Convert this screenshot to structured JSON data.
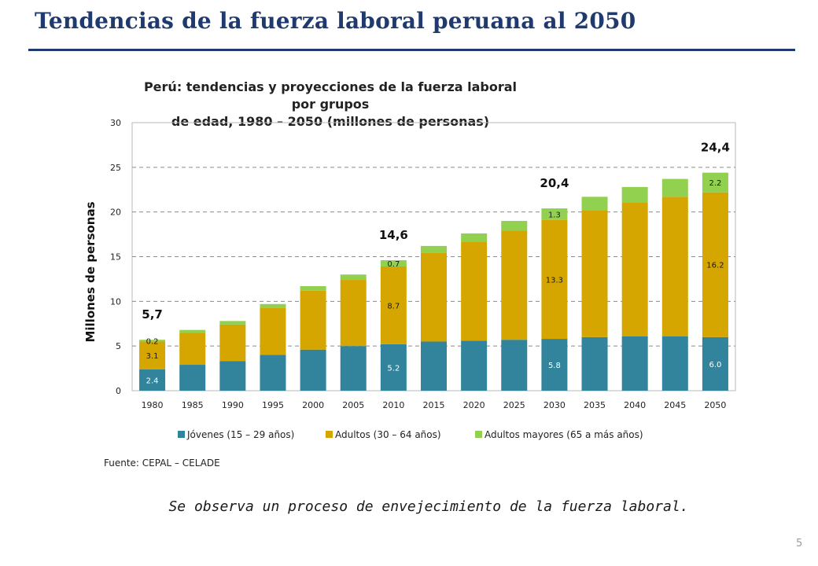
{
  "slide": {
    "title": "Tendencias  de la fuerza laboral peruana al 2050",
    "source": "Fuente: CEPAL – CELADE",
    "note": "Se observa un proceso de envejecimiento de la fuerza laboral.",
    "page_number": "5"
  },
  "colors": {
    "title": "#1f3a6e",
    "jovenes": "#31849b",
    "adultos": "#d6a600",
    "mayores": "#92d050"
  },
  "chart_data": {
    "type": "bar",
    "stacked": true,
    "title": [
      "Perú: tendencias y proyecciones de la fuerza laboral por grupos",
      "de edad, 1980 – 2050 (millones de personas)"
    ],
    "ylabel": "Millones de personas",
    "xlabel": "",
    "ylim": [
      0,
      30
    ],
    "yticks": [
      0,
      5,
      10,
      15,
      20,
      25,
      30
    ],
    "grid": true,
    "legend_position": "bottom",
    "categories": [
      "1980",
      "1985",
      "1990",
      "1995",
      "2000",
      "2005",
      "2010",
      "2015",
      "2020",
      "2025",
      "2030",
      "2035",
      "2040",
      "2045",
      "2050"
    ],
    "series": [
      {
        "name": "Jóvenes (15 – 29 años)",
        "color": "#31849b",
        "values": [
          2.4,
          2.9,
          3.3,
          4.0,
          4.6,
          5.0,
          5.2,
          5.5,
          5.6,
          5.7,
          5.8,
          6.0,
          6.1,
          6.1,
          6.0
        ],
        "data_labels": {
          "0": "2.4",
          "6": "5.2",
          "10": "5.8",
          "14": "6.0"
        }
      },
      {
        "name": "Adultos (30 – 64 años)",
        "color": "#d6a600",
        "values": [
          3.1,
          3.6,
          4.1,
          5.3,
          6.6,
          7.4,
          8.7,
          9.9,
          11.1,
          12.2,
          13.3,
          14.2,
          15.0,
          15.6,
          16.2
        ],
        "data_labels": {
          "0": "3.1",
          "6": "8.7",
          "10": "13.3",
          "14": "16.2"
        }
      },
      {
        "name": "Adultos mayores (65 a más años)",
        "color": "#92d050",
        "values": [
          0.2,
          0.3,
          0.4,
          0.4,
          0.5,
          0.6,
          0.7,
          0.8,
          0.9,
          1.1,
          1.3,
          1.5,
          1.7,
          2.0,
          2.2
        ],
        "data_labels": {
          "0": "0.2",
          "6": "0.7",
          "10": "1.3",
          "14": "2.2"
        }
      }
    ],
    "annotations": [
      {
        "category": "1980",
        "text": "5,7"
      },
      {
        "category": "2010",
        "text": "14,6"
      },
      {
        "category": "2030",
        "text": "20,4"
      },
      {
        "category": "2050",
        "text": "24,4"
      }
    ]
  }
}
